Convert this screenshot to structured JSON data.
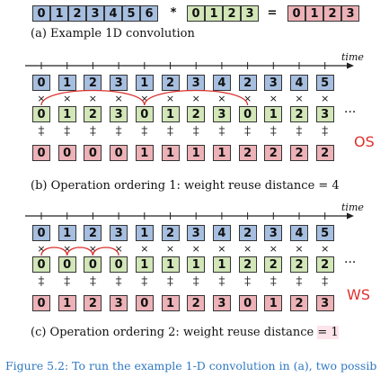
{
  "example": {
    "input": [
      "0",
      "1",
      "2",
      "3",
      "4",
      "5",
      "6"
    ],
    "star": "*",
    "weights": [
      "0",
      "1",
      "2",
      "3"
    ],
    "equals": "=",
    "output": [
      "0",
      "1",
      "2",
      "3"
    ],
    "caption": "(a) Example 1D convolution"
  },
  "axis_label": "time",
  "ordering1": {
    "inputs": [
      "0",
      "1",
      "2",
      "3",
      "1",
      "2",
      "3",
      "4",
      "2",
      "3",
      "4",
      "5"
    ],
    "weights": [
      "0",
      "1",
      "2",
      "3",
      "0",
      "1",
      "2",
      "3",
      "0",
      "1",
      "2",
      "3"
    ],
    "outputs": [
      "0",
      "0",
      "0",
      "0",
      "1",
      "1",
      "1",
      "1",
      "2",
      "2",
      "2",
      "2"
    ],
    "ellipsis": "···",
    "tag": "OS",
    "caption": "(b) Operation ordering 1: weight reuse distance = 4"
  },
  "ordering2": {
    "inputs": [
      "0",
      "1",
      "2",
      "3",
      "1",
      "2",
      "3",
      "4",
      "2",
      "3",
      "4",
      "5"
    ],
    "weights": [
      "0",
      "0",
      "0",
      "0",
      "1",
      "1",
      "1",
      "1",
      "2",
      "2",
      "2",
      "2"
    ],
    "outputs": [
      "0",
      "1",
      "2",
      "3",
      "0",
      "1",
      "2",
      "3",
      "0",
      "1",
      "2",
      "3"
    ],
    "ellipsis": "···",
    "tag": "WS",
    "caption_prefix": "(c) Operation ordering 2: weight reuse distance",
    "caption_highlight": "= 1"
  },
  "mul_symbol": "×",
  "add_symbol": "+",
  "figure_caption": "Figure 5.2: To run the example 1-D convolution in (a), two possib",
  "colors": {
    "input": "#a6bedf",
    "weight": "#d2e6b8",
    "output": "#ecb2b7",
    "tag": "#e0302c",
    "arc": "#d9322e",
    "figure_caption": "#2f78c2"
  }
}
